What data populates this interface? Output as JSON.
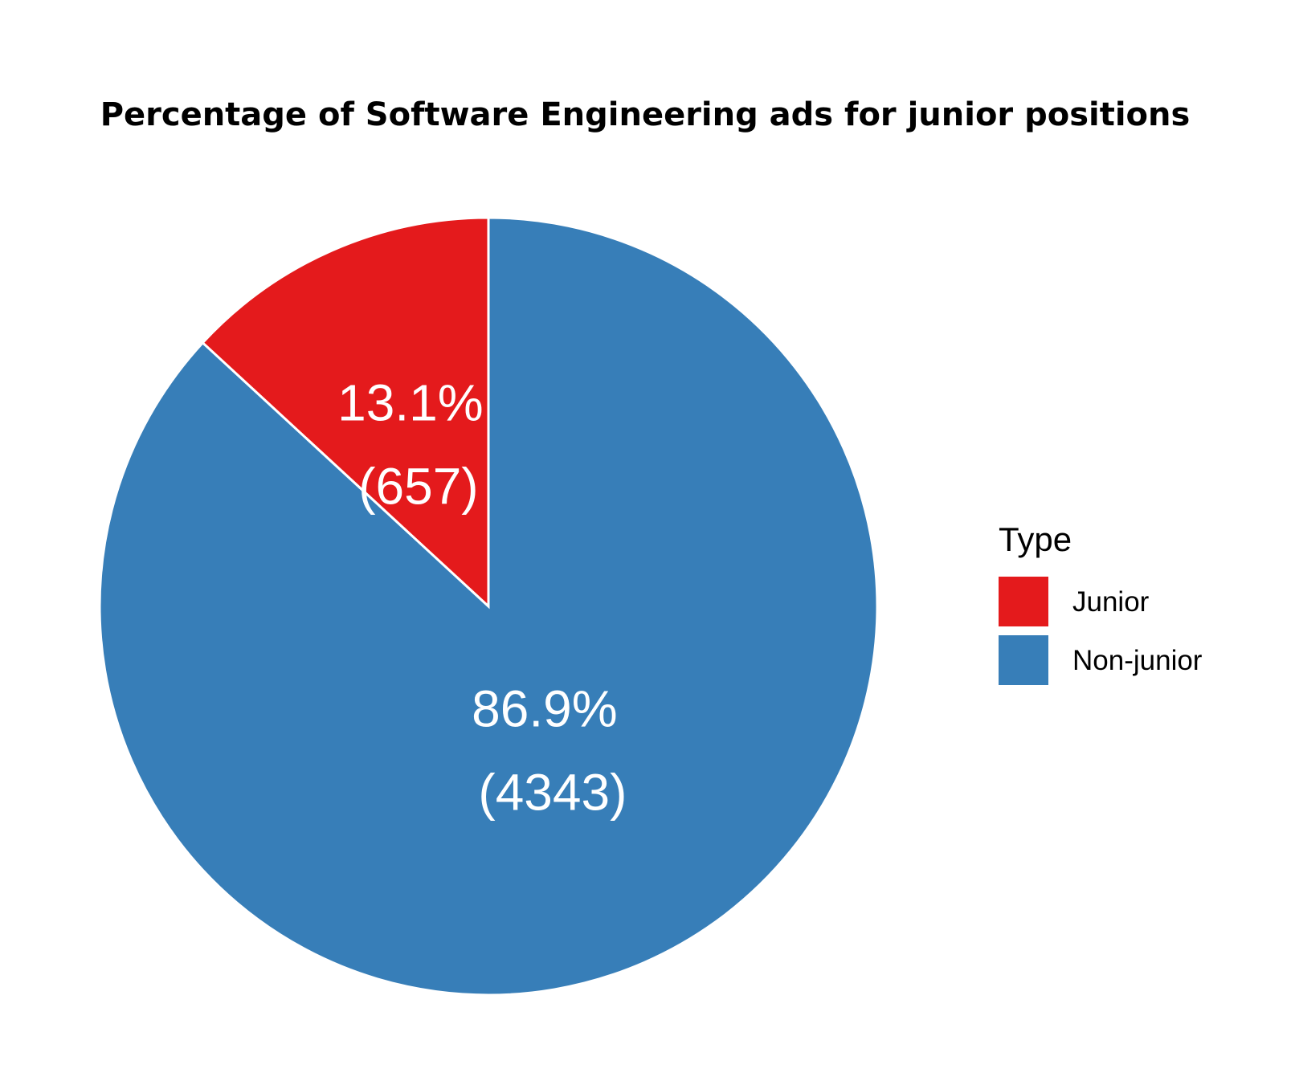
{
  "chart_data": {
    "type": "pie",
    "title": "Percentage of Software Engineering ads for junior positions",
    "legend": {
      "title": "Type",
      "placement": "right"
    },
    "start_angle": "top",
    "direction": "counterclockwise",
    "slices": [
      {
        "name": "Junior",
        "value": 657,
        "percent": 13.1,
        "percent_label": "13.1%",
        "count_label": "(657)",
        "color": "#E41A1C"
      },
      {
        "name": "Non-junior",
        "value": 4343,
        "percent": 86.9,
        "percent_label": "86.9%",
        "count_label": "(4343)",
        "color": "#377EB8"
      }
    ]
  }
}
